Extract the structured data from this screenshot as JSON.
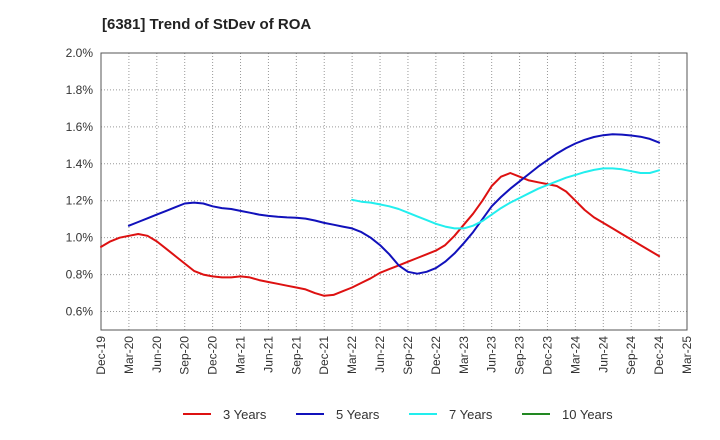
{
  "chart_data": {
    "type": "line",
    "title": "[6381]  Trend of StDev of ROA",
    "xlabel": "",
    "ylabel": "",
    "x_ticks": [
      "Dec-19",
      "Mar-20",
      "Jun-20",
      "Sep-20",
      "Dec-20",
      "Mar-21",
      "Jun-21",
      "Sep-21",
      "Dec-21",
      "Mar-22",
      "Jun-22",
      "Sep-22",
      "Dec-22",
      "Mar-23",
      "Jun-23",
      "Sep-23",
      "Dec-23",
      "Mar-24",
      "Jun-24",
      "Sep-24",
      "Dec-24",
      "Mar-25"
    ],
    "y_ticks": [
      "0.6%",
      "0.8%",
      "1.0%",
      "1.2%",
      "1.4%",
      "1.6%",
      "1.8%",
      "2.0%"
    ],
    "ylim": [
      0.5,
      2.0
    ],
    "grid": true,
    "legend_position": "bottom",
    "series": [
      {
        "name": "3 Years",
        "color": "#dd1111",
        "points": [
          [
            "Dec-19",
            0.95
          ],
          [
            "Jan-20",
            0.98
          ],
          [
            "Feb-20",
            1.0
          ],
          [
            "Mar-20",
            1.01
          ],
          [
            "Apr-20",
            1.02
          ],
          [
            "May-20",
            1.01
          ],
          [
            "Jun-20",
            0.98
          ],
          [
            "Jul-20",
            0.94
          ],
          [
            "Aug-20",
            0.9
          ],
          [
            "Sep-20",
            0.86
          ],
          [
            "Oct-20",
            0.82
          ],
          [
            "Nov-20",
            0.8
          ],
          [
            "Dec-20",
            0.79
          ],
          [
            "Jan-21",
            0.785
          ],
          [
            "Feb-21",
            0.785
          ],
          [
            "Mar-21",
            0.79
          ],
          [
            "Apr-21",
            0.785
          ],
          [
            "May-21",
            0.77
          ],
          [
            "Jun-21",
            0.76
          ],
          [
            "Jul-21",
            0.75
          ],
          [
            "Aug-21",
            0.74
          ],
          [
            "Sep-21",
            0.73
          ],
          [
            "Oct-21",
            0.72
          ],
          [
            "Nov-21",
            0.7
          ],
          [
            "Dec-21",
            0.685
          ],
          [
            "Jan-22",
            0.69
          ],
          [
            "Feb-22",
            0.71
          ],
          [
            "Mar-22",
            0.73
          ],
          [
            "Apr-22",
            0.755
          ],
          [
            "May-22",
            0.78
          ],
          [
            "Jun-22",
            0.81
          ],
          [
            "Jul-22",
            0.83
          ],
          [
            "Aug-22",
            0.85
          ],
          [
            "Sep-22",
            0.87
          ],
          [
            "Oct-22",
            0.89
          ],
          [
            "Nov-22",
            0.91
          ],
          [
            "Dec-22",
            0.93
          ],
          [
            "Jan-23",
            0.96
          ],
          [
            "Feb-23",
            1.01
          ],
          [
            "Mar-23",
            1.07
          ],
          [
            "Apr-23",
            1.13
          ],
          [
            "May-23",
            1.2
          ],
          [
            "Jun-23",
            1.28
          ],
          [
            "Jul-23",
            1.33
          ],
          [
            "Aug-23",
            1.35
          ],
          [
            "Sep-23",
            1.33
          ],
          [
            "Oct-23",
            1.31
          ],
          [
            "Nov-23",
            1.3
          ],
          [
            "Dec-23",
            1.29
          ],
          [
            "Jan-24",
            1.28
          ],
          [
            "Feb-24",
            1.25
          ],
          [
            "Mar-24",
            1.2
          ],
          [
            "Apr-24",
            1.15
          ],
          [
            "May-24",
            1.11
          ],
          [
            "Jun-24",
            1.08
          ],
          [
            "Jul-24",
            1.05
          ],
          [
            "Aug-24",
            1.02
          ],
          [
            "Sep-24",
            0.99
          ],
          [
            "Oct-24",
            0.96
          ],
          [
            "Nov-24",
            0.93
          ],
          [
            "Dec-24",
            0.9
          ]
        ]
      },
      {
        "name": "5 Years",
        "color": "#1111bb",
        "points": [
          [
            "Mar-20",
            1.065
          ],
          [
            "Apr-20",
            1.085
          ],
          [
            "May-20",
            1.105
          ],
          [
            "Jun-20",
            1.125
          ],
          [
            "Jul-20",
            1.145
          ],
          [
            "Aug-20",
            1.165
          ],
          [
            "Sep-20",
            1.185
          ],
          [
            "Oct-20",
            1.19
          ],
          [
            "Nov-20",
            1.185
          ],
          [
            "Dec-20",
            1.17
          ],
          [
            "Jan-21",
            1.16
          ],
          [
            "Feb-21",
            1.155
          ],
          [
            "Mar-21",
            1.145
          ],
          [
            "Apr-21",
            1.135
          ],
          [
            "May-21",
            1.125
          ],
          [
            "Jun-21",
            1.118
          ],
          [
            "Jul-21",
            1.113
          ],
          [
            "Aug-21",
            1.11
          ],
          [
            "Sep-21",
            1.108
          ],
          [
            "Oct-21",
            1.103
          ],
          [
            "Nov-21",
            1.093
          ],
          [
            "Dec-21",
            1.08
          ],
          [
            "Jan-22",
            1.07
          ],
          [
            "Feb-22",
            1.06
          ],
          [
            "Mar-22",
            1.05
          ],
          [
            "Apr-22",
            1.03
          ],
          [
            "May-22",
            1.0
          ],
          [
            "Jun-22",
            0.96
          ],
          [
            "Jul-22",
            0.91
          ],
          [
            "Aug-22",
            0.85
          ],
          [
            "Sep-22",
            0.815
          ],
          [
            "Oct-22",
            0.805
          ],
          [
            "Nov-22",
            0.815
          ],
          [
            "Dec-22",
            0.835
          ],
          [
            "Jan-23",
            0.87
          ],
          [
            "Feb-23",
            0.915
          ],
          [
            "Mar-23",
            0.97
          ],
          [
            "Apr-23",
            1.03
          ],
          [
            "May-23",
            1.1
          ],
          [
            "Jun-23",
            1.17
          ],
          [
            "Jul-23",
            1.22
          ],
          [
            "Aug-23",
            1.265
          ],
          [
            "Sep-23",
            1.305
          ],
          [
            "Oct-23",
            1.345
          ],
          [
            "Nov-23",
            1.385
          ],
          [
            "Dec-23",
            1.42
          ],
          [
            "Jan-24",
            1.455
          ],
          [
            "Feb-24",
            1.485
          ],
          [
            "Mar-24",
            1.51
          ],
          [
            "Apr-24",
            1.53
          ],
          [
            "May-24",
            1.545
          ],
          [
            "Jun-24",
            1.555
          ],
          [
            "Jul-24",
            1.56
          ],
          [
            "Aug-24",
            1.558
          ],
          [
            "Sep-24",
            1.553
          ],
          [
            "Oct-24",
            1.547
          ],
          [
            "Nov-24",
            1.535
          ],
          [
            "Dec-24",
            1.515
          ]
        ]
      },
      {
        "name": "7 Years",
        "color": "#22eeee",
        "points": [
          [
            "Mar-22",
            1.205
          ],
          [
            "Apr-22",
            1.195
          ],
          [
            "May-22",
            1.19
          ],
          [
            "Jun-22",
            1.18
          ],
          [
            "Jul-22",
            1.17
          ],
          [
            "Aug-22",
            1.155
          ],
          [
            "Sep-22",
            1.135
          ],
          [
            "Oct-22",
            1.115
          ],
          [
            "Nov-22",
            1.095
          ],
          [
            "Dec-22",
            1.075
          ],
          [
            "Jan-23",
            1.06
          ],
          [
            "Feb-23",
            1.05
          ],
          [
            "Mar-23",
            1.05
          ],
          [
            "Apr-23",
            1.065
          ],
          [
            "May-23",
            1.09
          ],
          [
            "Jun-23",
            1.125
          ],
          [
            "Jul-23",
            1.16
          ],
          [
            "Aug-23",
            1.19
          ],
          [
            "Sep-23",
            1.215
          ],
          [
            "Oct-23",
            1.24
          ],
          [
            "Nov-23",
            1.265
          ],
          [
            "Dec-23",
            1.285
          ],
          [
            "Jan-24",
            1.305
          ],
          [
            "Feb-24",
            1.325
          ],
          [
            "Mar-24",
            1.34
          ],
          [
            "Apr-24",
            1.355
          ],
          [
            "May-24",
            1.367
          ],
          [
            "Jun-24",
            1.375
          ],
          [
            "Jul-24",
            1.375
          ],
          [
            "Aug-24",
            1.37
          ],
          [
            "Sep-24",
            1.36
          ],
          [
            "Oct-24",
            1.35
          ],
          [
            "Nov-24",
            1.35
          ],
          [
            "Dec-24",
            1.365
          ]
        ]
      },
      {
        "name": "10 Years",
        "color": "#228822",
        "points": []
      }
    ]
  }
}
